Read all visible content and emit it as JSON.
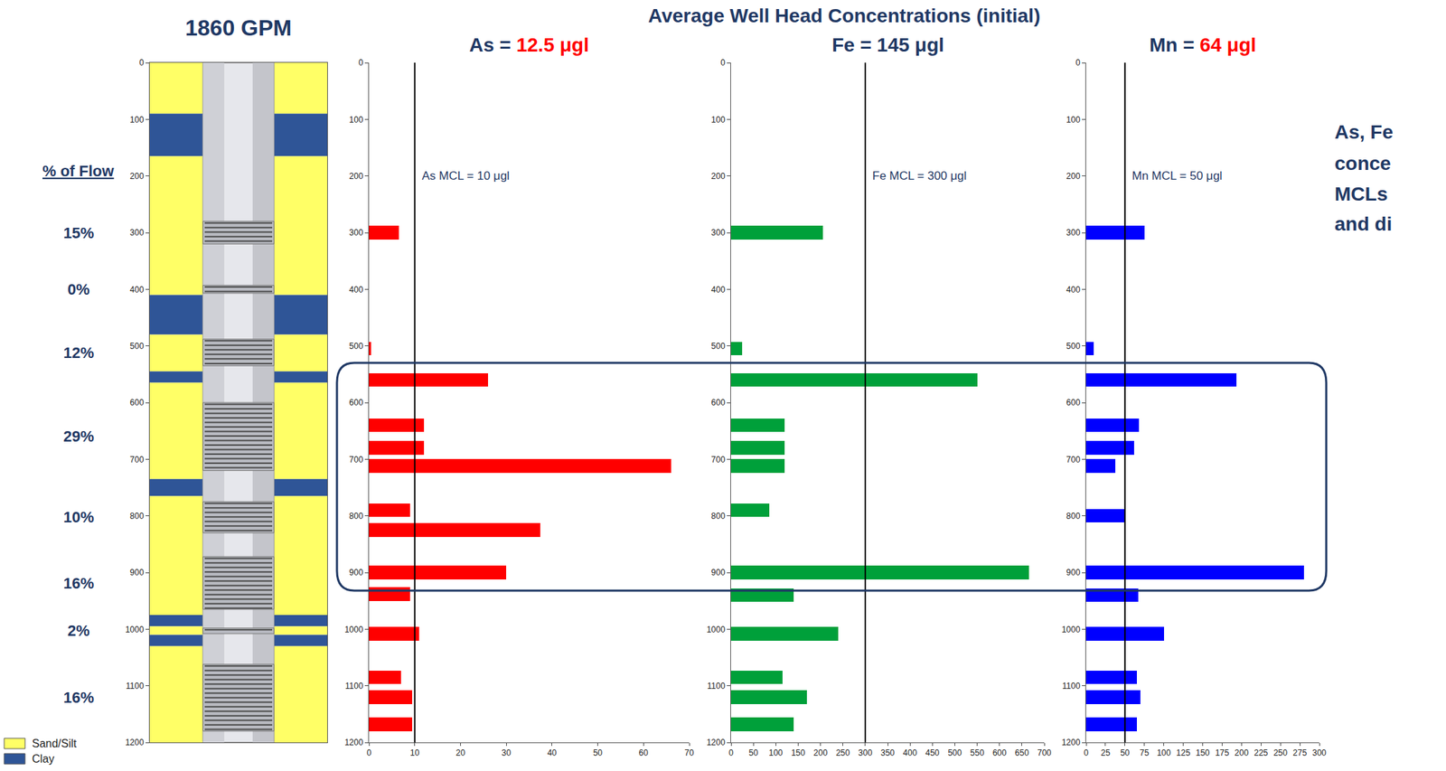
{
  "header": "Average Well Head Concentrations (initial)",
  "note_lines": [
    "As, Fe",
    "conce",
    "MCLs",
    "and di"
  ],
  "highlight_depths": [
    530,
    932
  ],
  "well": {
    "title": "1860 GPM",
    "flow_heading": "% of Flow",
    "ylim": [
      1200,
      0
    ],
    "yticks": [
      0,
      100,
      200,
      300,
      400,
      500,
      600,
      700,
      800,
      900,
      1000,
      1100,
      1200
    ],
    "materials": [
      {
        "name": "Sand/Silt",
        "color": "#ffff66"
      },
      {
        "name": "Clay",
        "color": "#2f5597"
      }
    ],
    "layers": [
      {
        "material": "Sand/Silt",
        "top": 0,
        "bottom": 90
      },
      {
        "material": "Clay",
        "top": 90,
        "bottom": 165
      },
      {
        "material": "Sand/Silt",
        "top": 165,
        "bottom": 410
      },
      {
        "material": "Clay",
        "top": 410,
        "bottom": 480
      },
      {
        "material": "Sand/Silt",
        "top": 480,
        "bottom": 545
      },
      {
        "material": "Clay",
        "top": 545,
        "bottom": 565
      },
      {
        "material": "Sand/Silt",
        "top": 565,
        "bottom": 735
      },
      {
        "material": "Clay",
        "top": 735,
        "bottom": 765
      },
      {
        "material": "Sand/Silt",
        "top": 765,
        "bottom": 975
      },
      {
        "material": "Clay",
        "top": 975,
        "bottom": 995
      },
      {
        "material": "Sand/Silt",
        "top": 995,
        "bottom": 1010
      },
      {
        "material": "Clay",
        "top": 1010,
        "bottom": 1030
      },
      {
        "material": "Sand/Silt",
        "top": 1030,
        "bottom": 1200
      }
    ],
    "screens": [
      {
        "top": 280,
        "bottom": 320,
        "flow": 15,
        "flow_label": "15%"
      },
      {
        "top": 393,
        "bottom": 407,
        "flow": 0,
        "flow_label": "0%"
      },
      {
        "top": 488,
        "bottom": 535,
        "flow": 12,
        "flow_label": "12%"
      },
      {
        "top": 600,
        "bottom": 720,
        "flow": 29,
        "flow_label": "29%"
      },
      {
        "top": 775,
        "bottom": 830,
        "flow": 10,
        "flow_label": "10%"
      },
      {
        "top": 872,
        "bottom": 965,
        "flow": 16,
        "flow_label": "16%"
      },
      {
        "top": 998,
        "bottom": 1008,
        "flow": 2,
        "flow_label": "2%"
      },
      {
        "top": 1062,
        "bottom": 1180,
        "flow": 16,
        "flow_label": "16%"
      }
    ]
  },
  "chart_data": [
    {
      "type": "bar",
      "orientation": "horizontal",
      "title_parts": [
        {
          "text": "As = ",
          "color": "#1f3864"
        },
        {
          "text": "12.5 μgl",
          "color": "#ff0000"
        }
      ],
      "y": [
        300,
        505,
        560,
        640,
        680,
        712,
        790,
        825,
        900,
        938,
        1008,
        1085,
        1120,
        1168
      ],
      "values": [
        6.5,
        0.5,
        26,
        12,
        12,
        66,
        9,
        37.5,
        30,
        9,
        11,
        7,
        9.5,
        9.5
      ],
      "color": "#ff0000",
      "xlim": [
        0,
        70
      ],
      "xticks": [
        0,
        10,
        20,
        30,
        40,
        50,
        60,
        70
      ],
      "ylim": [
        1200,
        0
      ],
      "yticks": [
        0,
        100,
        200,
        300,
        400,
        500,
        600,
        700,
        800,
        900,
        1000,
        1100,
        1200
      ],
      "mcl": 10,
      "mcl_label": "As MCL = 10 μgl"
    },
    {
      "type": "bar",
      "orientation": "horizontal",
      "title_parts": [
        {
          "text": "Fe = 145 μgl",
          "color": "#1f3864"
        }
      ],
      "y": [
        300,
        505,
        560,
        640,
        680,
        712,
        790,
        900,
        940,
        1008,
        1085,
        1120,
        1168
      ],
      "values": [
        205,
        25,
        550,
        120,
        120,
        120,
        85,
        665,
        140,
        240,
        115,
        170,
        140
      ],
      "color": "#00a03a",
      "xlim": [
        0,
        700
      ],
      "xticks": [
        0,
        50,
        100,
        150,
        200,
        250,
        300,
        350,
        400,
        450,
        500,
        550,
        600,
        650,
        700
      ],
      "ylim": [
        1200,
        0
      ],
      "yticks": [
        0,
        100,
        200,
        300,
        400,
        500,
        600,
        700,
        800,
        900,
        1000,
        1100,
        1200
      ],
      "mcl": 300,
      "mcl_label": "Fe MCL = 300 μgl"
    },
    {
      "type": "bar",
      "orientation": "horizontal",
      "title_parts": [
        {
          "text": "Mn = ",
          "color": "#1f3864"
        },
        {
          "text": "64 μgl",
          "color": "#ff0000"
        }
      ],
      "y": [
        300,
        505,
        560,
        640,
        680,
        712,
        800,
        900,
        940,
        1008,
        1085,
        1120,
        1168
      ],
      "values": [
        75,
        10,
        193,
        68,
        62,
        38,
        50,
        280,
        67,
        100,
        65,
        70,
        65
      ],
      "color": "#0000ff",
      "xlim": [
        0,
        300
      ],
      "xticks": [
        0,
        25,
        50,
        75,
        100,
        125,
        150,
        175,
        200,
        225,
        250,
        275,
        300
      ],
      "ylim": [
        1200,
        0
      ],
      "yticks": [
        0,
        100,
        200,
        300,
        400,
        500,
        600,
        700,
        800,
        900,
        1000,
        1100,
        1200
      ],
      "mcl": 50,
      "mcl_label": "Mn MCL = 50 μgl"
    }
  ]
}
